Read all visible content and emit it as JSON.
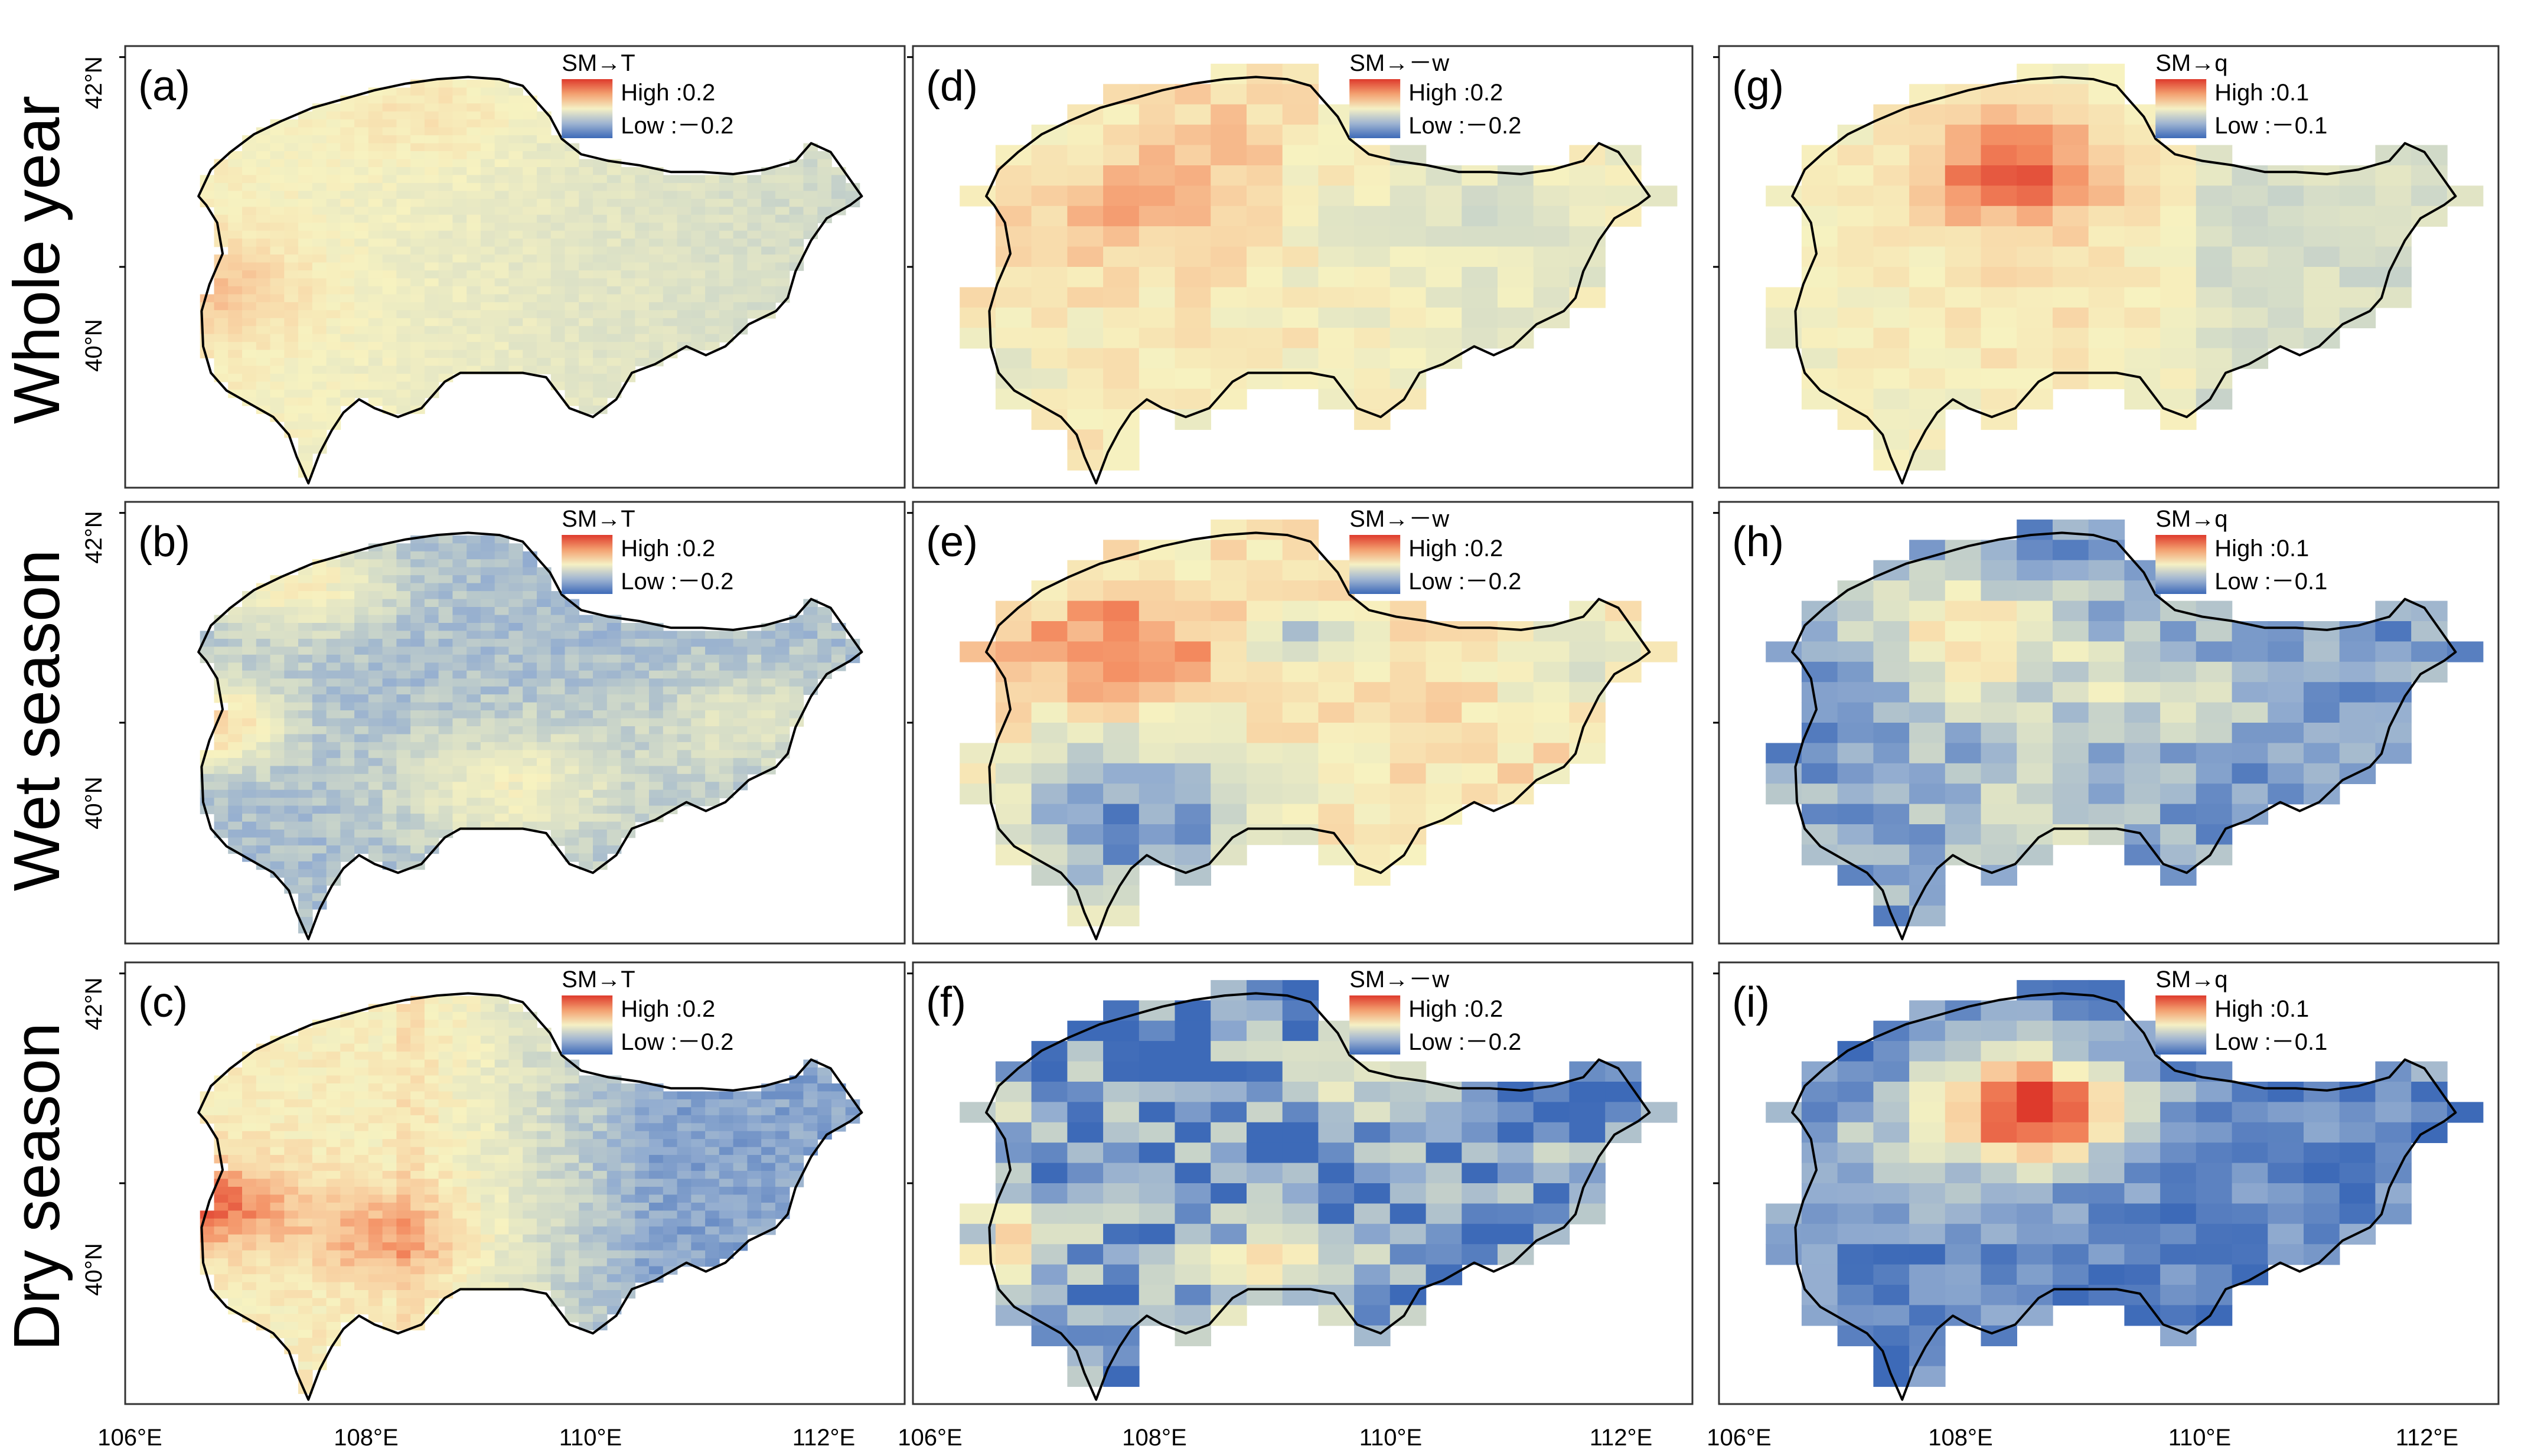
{
  "figure": {
    "row_labels": [
      "Whole year",
      "Wet season",
      "Dry season"
    ],
    "lat_ticks": [
      "42°N",
      "40°N"
    ],
    "lon_ticks": [
      "106°E",
      "108°E",
      "110°E",
      "112°E"
    ],
    "legend_high_prefix": "High :",
    "legend_low_prefix": "Low :"
  },
  "colors": {
    "scale": [
      "#3d6ab8",
      "#93add0",
      "#d4dcc8",
      "#f7f2c0",
      "#f8cfa0",
      "#f3895e",
      "#de3a2c"
    ],
    "outline": "#000000",
    "frame": "#333333"
  },
  "panels": [
    {
      "id": "a",
      "label": "(a)",
      "title": "SM→T",
      "high": "0.2",
      "low": "－0.2",
      "grid": "fine",
      "pattern": "T_whole"
    },
    {
      "id": "d",
      "label": "(d)",
      "title": "SM→－w",
      "high": "0.2",
      "low": "－0.2",
      "grid": "coarse",
      "pattern": "w_whole"
    },
    {
      "id": "g",
      "label": "(g)",
      "title": "SM→q",
      "high": "0.1",
      "low": "－0.1",
      "grid": "coarse",
      "pattern": "q_whole"
    },
    {
      "id": "b",
      "label": "(b)",
      "title": "SM→T",
      "high": "0.2",
      "low": "－0.2",
      "grid": "fine",
      "pattern": "T_wet"
    },
    {
      "id": "e",
      "label": "(e)",
      "title": "SM→－w",
      "high": "0.2",
      "low": "－0.2",
      "grid": "coarse",
      "pattern": "w_wet"
    },
    {
      "id": "h",
      "label": "(h)",
      "title": "SM→q",
      "high": "0.1",
      "low": "－0.1",
      "grid": "coarse",
      "pattern": "q_wet"
    },
    {
      "id": "c",
      "label": "(c)",
      "title": "SM→T",
      "high": "0.2",
      "low": "－0.2",
      "grid": "fine",
      "pattern": "T_dry"
    },
    {
      "id": "f",
      "label": "(f)",
      "title": "SM→－w",
      "high": "0.2",
      "low": "－0.2",
      "grid": "coarse",
      "pattern": "w_dry"
    },
    {
      "id": "i",
      "label": "(i)",
      "title": "SM→q",
      "high": "0.1",
      "low": "－0.1",
      "grid": "coarse",
      "pattern": "q_dry"
    }
  ]
}
